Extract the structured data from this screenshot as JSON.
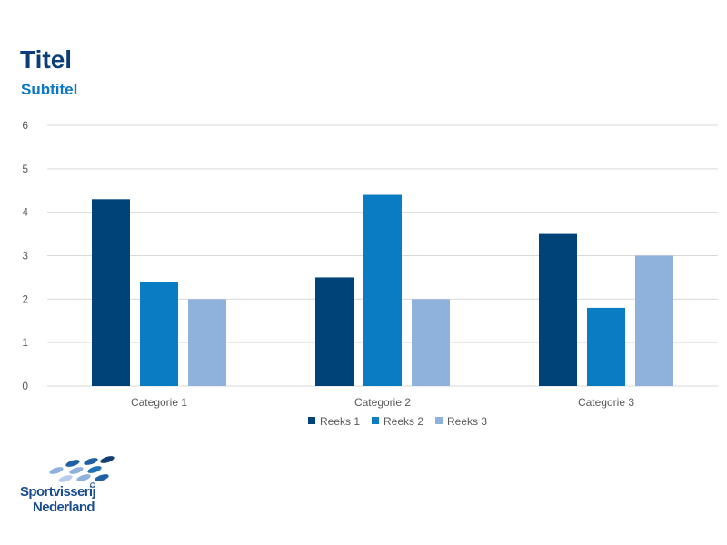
{
  "slide": {
    "title": "Titel",
    "subtitle": "Subtitel"
  },
  "chart_data": {
    "type": "bar",
    "title": "",
    "xlabel": "",
    "ylabel": "",
    "categories": [
      "Categorie 1",
      "Categorie 2",
      "Categorie 3"
    ],
    "series": [
      {
        "name": "Reeks 1",
        "values": [
          4.3,
          2.5,
          3.5
        ],
        "color": "#004379"
      },
      {
        "name": "Reeks 2",
        "values": [
          2.4,
          4.4,
          1.8
        ],
        "color": "#0a7cc4"
      },
      {
        "name": "Reeks 3",
        "values": [
          2.0,
          2.0,
          3.0
        ],
        "color": "#8fb2dd"
      }
    ],
    "ylim": [
      0,
      6
    ],
    "yticks": [
      0,
      1,
      2,
      3,
      4,
      5,
      6
    ],
    "grid": true,
    "legend_position": "bottom"
  },
  "logo": {
    "line1": "Sportvisserij",
    "line2": "Nederland"
  },
  "colors": {
    "title": "#0b3e78",
    "subtitle": "#0a78c2",
    "axis_text": "#595959",
    "gridline": "#d9d9d9"
  }
}
